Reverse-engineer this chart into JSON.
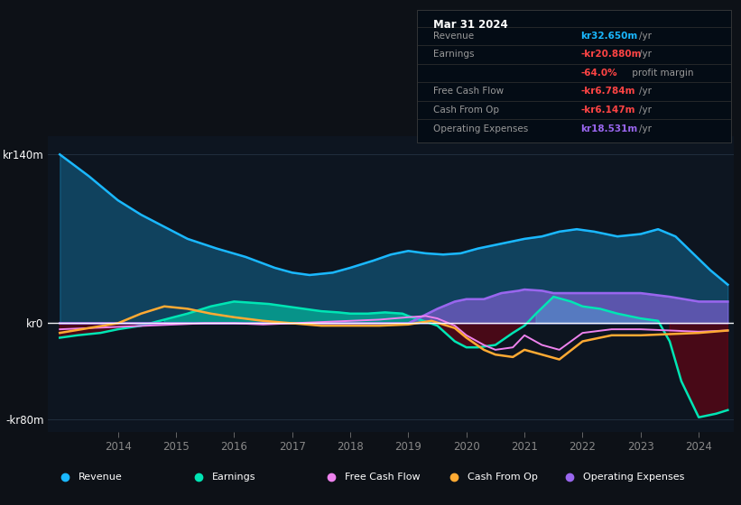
{
  "bg_color": "#0d1117",
  "plot_bg_color": "#0d1520",
  "grid_color": "#2a3a4a",
  "ylim": [
    -90,
    155
  ],
  "yticks": [
    -80,
    0,
    140
  ],
  "ytick_labels": [
    "-kr80m",
    "kr0",
    "kr140m"
  ],
  "xlim_start": 2012.8,
  "xlim_end": 2024.6,
  "xticks": [
    2014,
    2015,
    2016,
    2017,
    2018,
    2019,
    2020,
    2021,
    2022,
    2023,
    2024
  ],
  "colors": {
    "revenue": "#1ab8ff",
    "earnings": "#00e5b4",
    "fcf": "#ee82ee",
    "cashfromop": "#ffaa33",
    "opex": "#9966ee"
  },
  "legend": [
    {
      "label": "Revenue",
      "color": "#1ab8ff"
    },
    {
      "label": "Earnings",
      "color": "#00e5b4"
    },
    {
      "label": "Free Cash Flow",
      "color": "#ee82ee"
    },
    {
      "label": "Cash From Op",
      "color": "#ffaa33"
    },
    {
      "label": "Operating Expenses",
      "color": "#9966ee"
    }
  ],
  "rev_x": [
    2013.0,
    2013.5,
    2014.0,
    2014.4,
    2014.8,
    2015.2,
    2015.7,
    2016.2,
    2016.7,
    2017.0,
    2017.3,
    2017.7,
    2018.0,
    2018.4,
    2018.7,
    2019.0,
    2019.3,
    2019.6,
    2019.9,
    2020.2,
    2020.5,
    2020.8,
    2021.0,
    2021.3,
    2021.6,
    2021.9,
    2022.2,
    2022.6,
    2023.0,
    2023.3,
    2023.6,
    2023.9,
    2024.2,
    2024.5
  ],
  "rev_y": [
    140,
    122,
    102,
    90,
    80,
    70,
    62,
    55,
    46,
    42,
    40,
    42,
    46,
    52,
    57,
    60,
    58,
    57,
    58,
    62,
    65,
    68,
    70,
    72,
    76,
    78,
    76,
    72,
    74,
    78,
    72,
    58,
    44,
    32
  ],
  "earn_x": [
    2013.0,
    2013.3,
    2013.7,
    2014.0,
    2014.4,
    2014.8,
    2015.2,
    2015.6,
    2016.0,
    2016.3,
    2016.6,
    2016.9,
    2017.2,
    2017.5,
    2017.8,
    2018.0,
    2018.3,
    2018.6,
    2018.9,
    2019.0,
    2019.2,
    2019.5,
    2019.8,
    2020.0,
    2020.2,
    2020.5,
    2020.8,
    2021.0,
    2021.2,
    2021.5,
    2021.8,
    2022.0,
    2022.3,
    2022.6,
    2022.9,
    2023.0,
    2023.3,
    2023.5,
    2023.7,
    2024.0,
    2024.3,
    2024.5
  ],
  "earn_y": [
    -12,
    -10,
    -8,
    -5,
    -2,
    3,
    8,
    14,
    18,
    17,
    16,
    14,
    12,
    10,
    9,
    8,
    8,
    9,
    8,
    6,
    3,
    -2,
    -15,
    -20,
    -20,
    -18,
    -8,
    -2,
    8,
    22,
    18,
    14,
    12,
    8,
    5,
    4,
    2,
    -15,
    -48,
    -78,
    -75,
    -72
  ],
  "fcf_x": [
    2013.0,
    2013.5,
    2014.0,
    2014.5,
    2015.0,
    2015.5,
    2016.0,
    2016.5,
    2017.0,
    2017.5,
    2018.0,
    2018.5,
    2019.0,
    2019.3,
    2019.5,
    2019.8,
    2020.0,
    2020.3,
    2020.5,
    2020.8,
    2021.0,
    2021.3,
    2021.6,
    2022.0,
    2022.5,
    2023.0,
    2023.5,
    2024.0,
    2024.5
  ],
  "fcf_y": [
    -5,
    -4,
    -3,
    -2,
    -1,
    0,
    0,
    -1,
    0,
    1,
    2,
    3,
    5,
    6,
    4,
    -2,
    -10,
    -18,
    -22,
    -20,
    -10,
    -18,
    -22,
    -8,
    -5,
    -5,
    -6,
    -7,
    -6
  ],
  "cop_x": [
    2013.0,
    2013.5,
    2014.0,
    2014.4,
    2014.8,
    2015.2,
    2015.6,
    2016.0,
    2016.5,
    2017.0,
    2017.5,
    2018.0,
    2018.5,
    2019.0,
    2019.4,
    2019.8,
    2020.0,
    2020.3,
    2020.5,
    2020.8,
    2021.0,
    2021.3,
    2021.6,
    2022.0,
    2022.5,
    2023.0,
    2023.5,
    2024.0,
    2024.5
  ],
  "cop_y": [
    -8,
    -4,
    0,
    8,
    14,
    12,
    8,
    5,
    2,
    0,
    -2,
    -2,
    -2,
    -1,
    2,
    -4,
    -12,
    -22,
    -26,
    -28,
    -22,
    -26,
    -30,
    -15,
    -10,
    -10,
    -9,
    -8,
    -6
  ],
  "opex_x": [
    2013.0,
    2018.95,
    2019.0,
    2019.5,
    2019.8,
    2020.0,
    2020.1,
    2020.3,
    2020.6,
    2020.9,
    2021.0,
    2021.3,
    2021.5,
    2022.0,
    2022.5,
    2023.0,
    2023.5,
    2024.0,
    2024.5
  ],
  "opex_y": [
    0,
    0,
    0,
    12,
    18,
    20,
    20,
    20,
    25,
    27,
    28,
    27,
    25,
    25,
    25,
    25,
    22,
    18,
    18
  ]
}
